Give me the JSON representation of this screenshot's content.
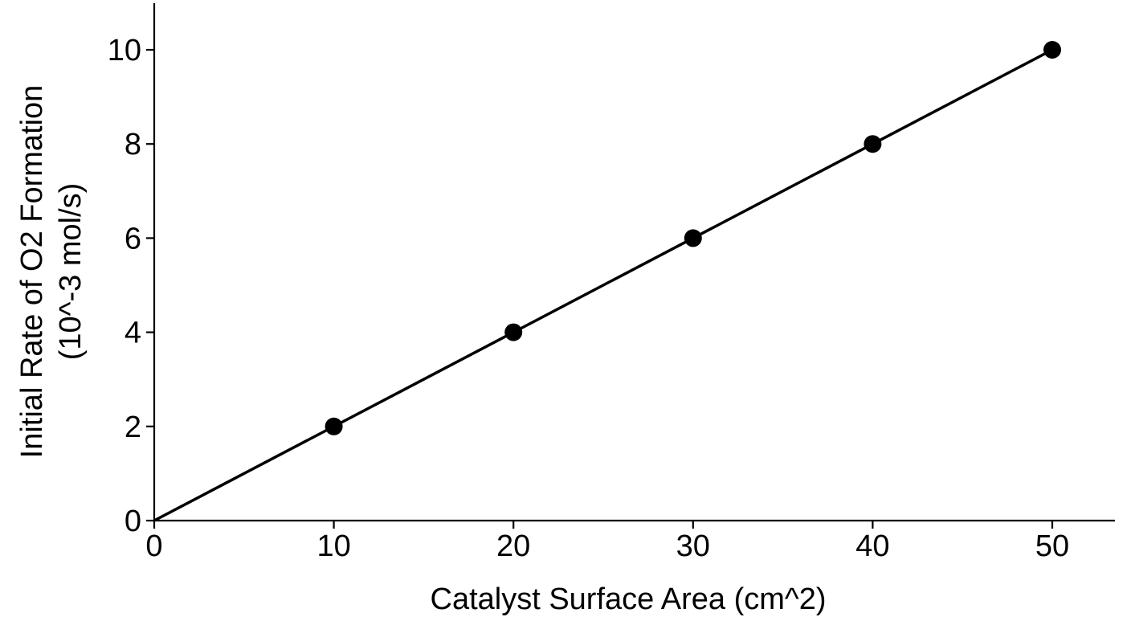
{
  "chart_data": {
    "type": "scatter",
    "title": "",
    "xlabel": "Catalyst Surface Area (cm^2)",
    "ylabel_lines": [
      "Initial Rate of O2 Formation",
      "(10^-3 mol/s)"
    ],
    "xlim": [
      0,
      53.5
    ],
    "ylim": [
      0,
      11
    ],
    "xticks": [
      0,
      10,
      20,
      30,
      40,
      50
    ],
    "yticks": [
      0,
      2,
      4,
      6,
      8,
      10
    ],
    "grid": false,
    "legend": "none",
    "series": [
      {
        "x": [
          10,
          20,
          30,
          40,
          50
        ],
        "y": [
          2,
          4,
          6,
          8,
          10
        ]
      }
    ],
    "fit_line": {
      "x": [
        0,
        50
      ],
      "y": [
        0,
        10
      ]
    },
    "colors": {
      "line": "#000000",
      "points": "#000000"
    }
  }
}
